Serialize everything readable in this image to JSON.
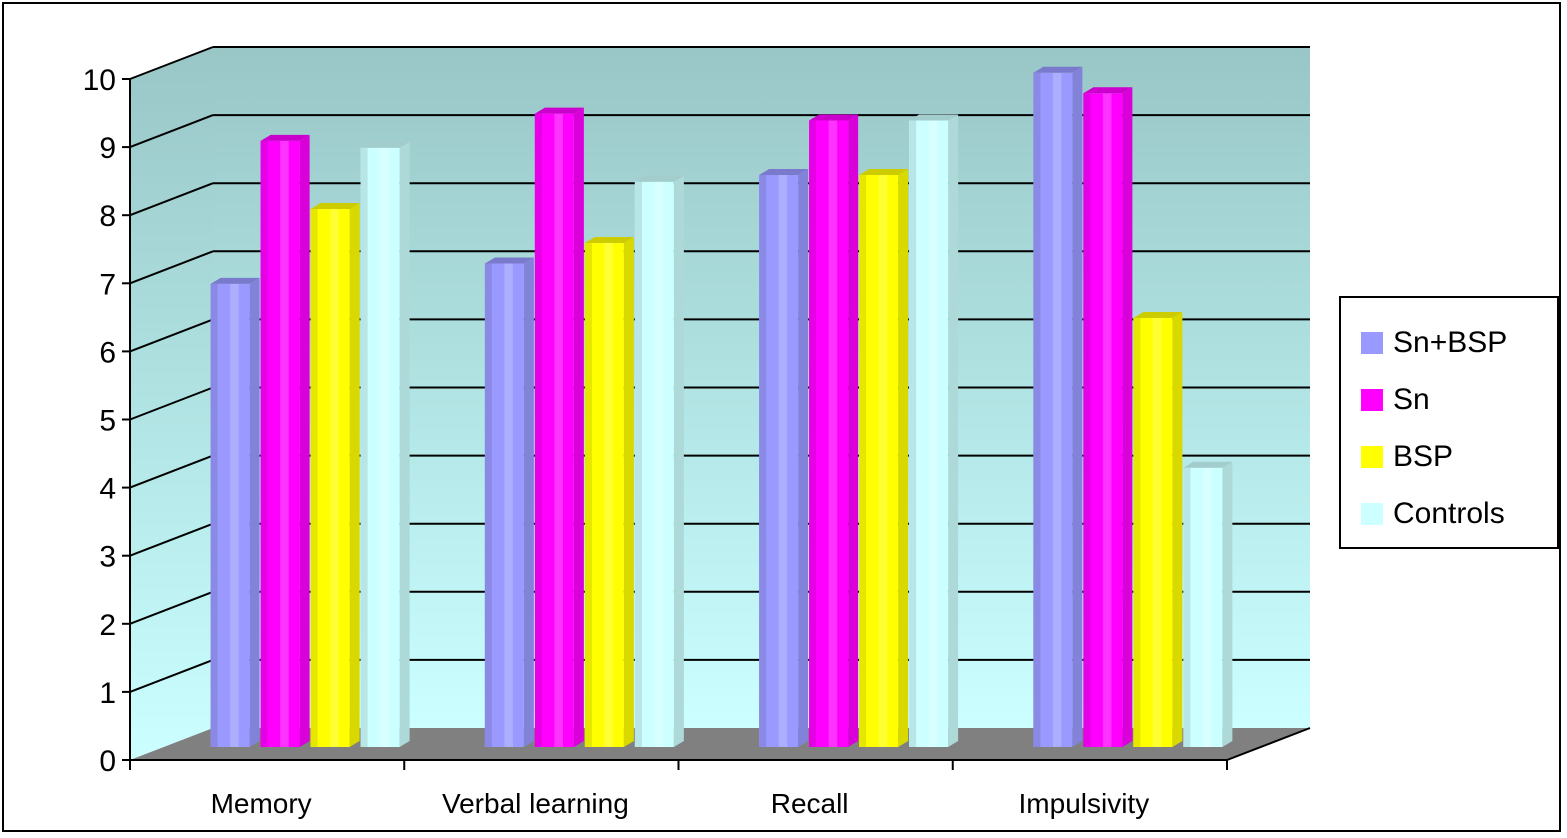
{
  "chart_data": {
    "type": "bar",
    "title": "",
    "xlabel": "",
    "ylabel": "",
    "ylim": [
      0,
      10
    ],
    "yticks": [
      "0",
      "1",
      "2",
      "3",
      "4",
      "5",
      "6",
      "7",
      "8",
      "9",
      "10"
    ],
    "categories": [
      "Memory",
      "Verbal learning",
      "Recall",
      "Impulsivity"
    ],
    "series": [
      {
        "name": "Sn+BSP",
        "color": "#9999ff",
        "values": [
          6.8,
          7.1,
          8.4,
          9.9
        ]
      },
      {
        "name": "Sn",
        "color": "#ff00ff",
        "values": [
          8.9,
          9.3,
          9.2,
          9.6
        ]
      },
      {
        "name": "BSP",
        "color": "#ffff00",
        "values": [
          7.9,
          7.4,
          8.4,
          6.3
        ]
      },
      {
        "name": "Controls",
        "color": "#ccffff",
        "values": [
          8.8,
          8.3,
          9.2,
          4.1
        ]
      }
    ],
    "grid": true,
    "three_d": true,
    "legend_position": "right"
  }
}
